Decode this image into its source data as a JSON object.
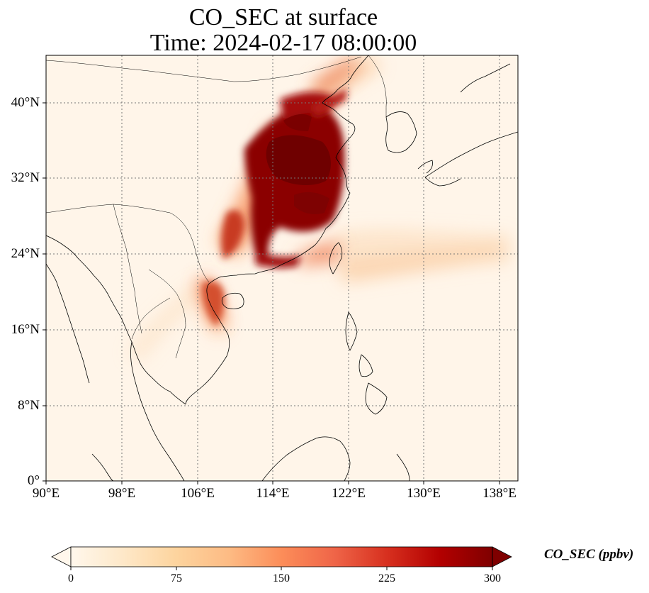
{
  "title": {
    "line1": "CO_SEC at surface",
    "line2": "Time: 2024-02-17 08:00:00"
  },
  "map": {
    "projection": "PlateCarree",
    "lon_range": [
      90,
      140
    ],
    "lat_range": [
      0,
      45
    ],
    "gridlines": "dotted gray",
    "lon_ticks": [
      {
        "value": 90,
        "label": "90°E"
      },
      {
        "value": 98,
        "label": "98°E"
      },
      {
        "value": 106,
        "label": "106°E"
      },
      {
        "value": 114,
        "label": "114°E"
      },
      {
        "value": 122,
        "label": "122°E"
      },
      {
        "value": 130,
        "label": "130°E"
      },
      {
        "value": 138,
        "label": "138°E"
      }
    ],
    "lat_ticks": [
      {
        "value": 0,
        "label": "0°"
      },
      {
        "value": 8,
        "label": "8°N"
      },
      {
        "value": 16,
        "label": "16°N"
      },
      {
        "value": 24,
        "label": "24°N"
      },
      {
        "value": 32,
        "label": "32°N"
      },
      {
        "value": 40,
        "label": "40°N"
      }
    ],
    "field_description": "CO_SEC surface concentration heat map, highest over eastern China",
    "hotspots_ppbv": [
      {
        "lon": 116.5,
        "lat": 33.5,
        "value": 300
      },
      {
        "lon": 118,
        "lat": 35,
        "value": 300
      },
      {
        "lon": 114,
        "lat": 31,
        "value": 290
      },
      {
        "lon": 118.5,
        "lat": 30,
        "value": 280
      },
      {
        "lon": 117,
        "lat": 39,
        "value": 260
      },
      {
        "lon": 113.5,
        "lat": 24.5,
        "value": 250
      },
      {
        "lon": 109,
        "lat": 19,
        "value": 200
      },
      {
        "lon": 111,
        "lat": 26.5,
        "value": 180
      },
      {
        "lon": 121,
        "lat": 25,
        "value": 120
      }
    ]
  },
  "colorbar": {
    "label": "CO_SEC (ppbv)",
    "min": 0,
    "max": 300,
    "extend": "both",
    "cmap": "OrRd",
    "ticks": [
      "0",
      "75",
      "150",
      "225",
      "300"
    ],
    "colors": [
      "#fff7ec",
      "#fee8c8",
      "#fdd49e",
      "#fdbb84",
      "#fc8d59",
      "#ef6548",
      "#d7301f",
      "#b30000",
      "#7f0000"
    ]
  }
}
